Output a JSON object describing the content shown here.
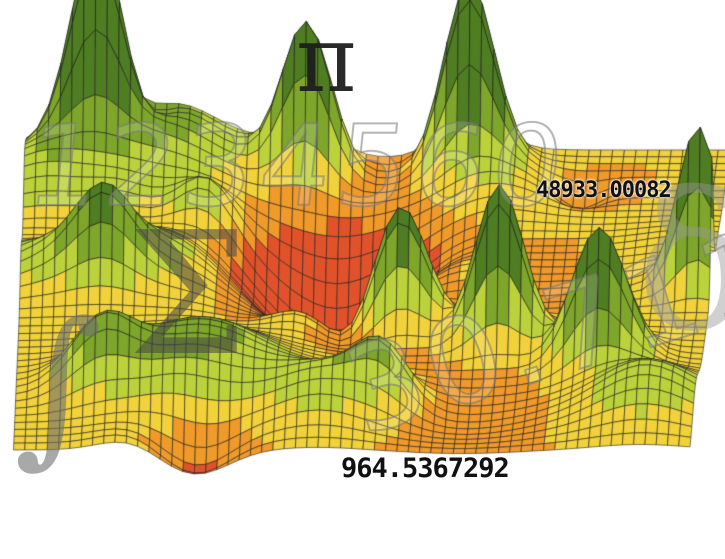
{
  "overlay": {
    "pi_symbol": "π",
    "sigma_symbol": "Σ",
    "integral_symbol": "∫",
    "delta_symbol": "δ",
    "ghost_number_top": "1234560",
    "ghost_number_bottom": "30.7112",
    "readout_top": "48933.00082",
    "readout_bottom": "964.5367292"
  },
  "colors": {
    "peak_green_dark": "#4f7d22",
    "green": "#7ea62a",
    "yellow_green": "#bcd23a",
    "yellow": "#f1d23a",
    "orange": "#f09a2a",
    "red": "#e2522a",
    "mesh_line": "#1e1e1e"
  }
}
